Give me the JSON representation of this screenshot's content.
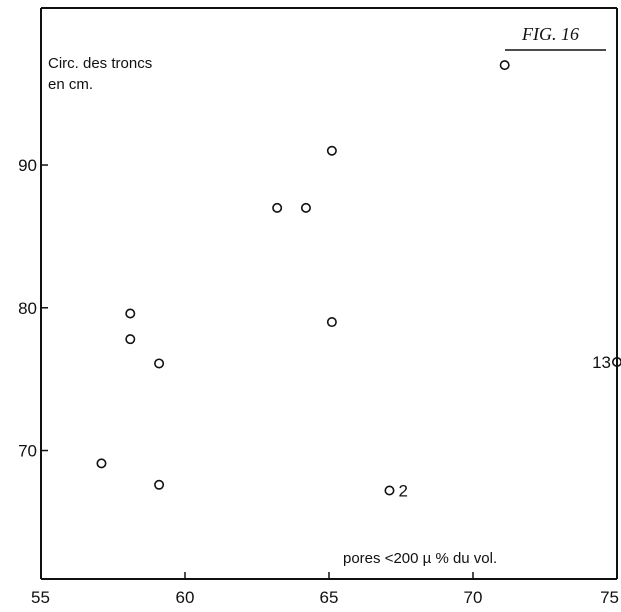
{
  "chart_data": {
    "type": "scatter",
    "title": "FIG. 16",
    "ylabel_lines": [
      "Circ. des troncs",
      "en cm."
    ],
    "xlabel": "pores <200 µ  % du vol.",
    "xlim": [
      55,
      75
    ],
    "ylim": [
      61,
      101
    ],
    "x_ticks": [
      55,
      60,
      65,
      70,
      75
    ],
    "y_ticks": [
      70,
      80,
      90
    ],
    "grid": false,
    "points": [
      {
        "x": 57.1,
        "y": 69.1
      },
      {
        "x": 58.1,
        "y": 79.6
      },
      {
        "x": 58.1,
        "y": 77.8
      },
      {
        "x": 59.1,
        "y": 76.1
      },
      {
        "x": 59.1,
        "y": 67.6
      },
      {
        "x": 63.2,
        "y": 87.0
      },
      {
        "x": 64.2,
        "y": 87.0
      },
      {
        "x": 65.1,
        "y": 91.0
      },
      {
        "x": 65.1,
        "y": 79.0
      },
      {
        "x": 67.1,
        "y": 67.2,
        "label": "2"
      },
      {
        "x": 71.1,
        "y": 97.0
      },
      {
        "x": 75.0,
        "y": 76.2,
        "label": "13"
      }
    ]
  }
}
